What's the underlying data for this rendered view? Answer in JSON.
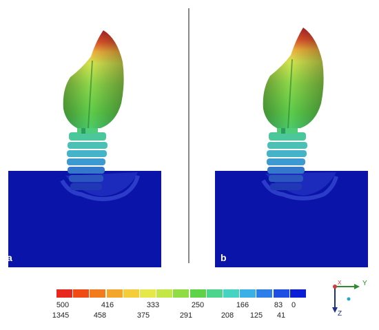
{
  "panels": [
    {
      "label": "a"
    },
    {
      "label": "b"
    }
  ],
  "legend": {
    "colors": [
      "#e8281f",
      "#f04b14",
      "#f27c1d",
      "#f4a62a",
      "#f5cc3a",
      "#e6e84a",
      "#c3e747",
      "#8fdc43",
      "#5fd347",
      "#4ed58d",
      "#46d3c2",
      "#3ab0e6",
      "#2d7ee8",
      "#1e4fe4",
      "#0a1ed6"
    ],
    "top_labels": [
      "500",
      "416",
      "333",
      "250",
      "166",
      "83",
      "0"
    ],
    "bottom_labels": [
      "1345",
      "458",
      "375",
      "291",
      "208",
      "125",
      "41"
    ]
  },
  "triad": {
    "x_label": "X",
    "y_label": "Y",
    "z_label": "Z"
  }
}
